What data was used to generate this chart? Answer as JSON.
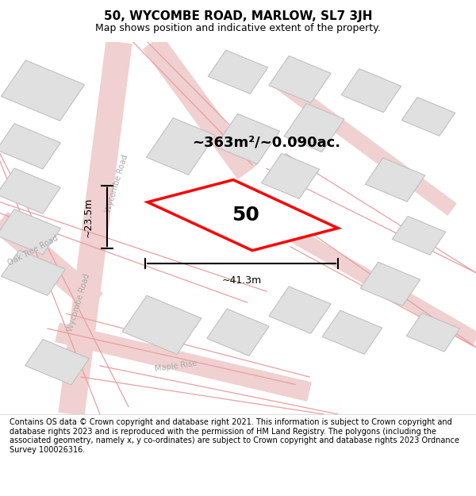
{
  "title": "50, WYCOMBE ROAD, MARLOW, SL7 3JH",
  "subtitle": "Map shows position and indicative extent of the property.",
  "footer": "Contains OS data © Crown copyright and database right 2021. This information is subject to Crown copyright and database rights 2023 and is reproduced with the permission of HM Land Registry. The polygons (including the associated geometry, namely x, y co-ordinates) are subject to Crown copyright and database rights 2023 Ordnance Survey 100026316.",
  "area_label": "~363m²/~0.090ac.",
  "number_label": "50",
  "width_label": "~41.3m",
  "height_label": "~23.5m",
  "road_color": "#f0d0d0",
  "building_fill": "#e0e0e0",
  "building_edge": "#c0c0c0",
  "fig_width": 6.0,
  "fig_height": 6.25
}
